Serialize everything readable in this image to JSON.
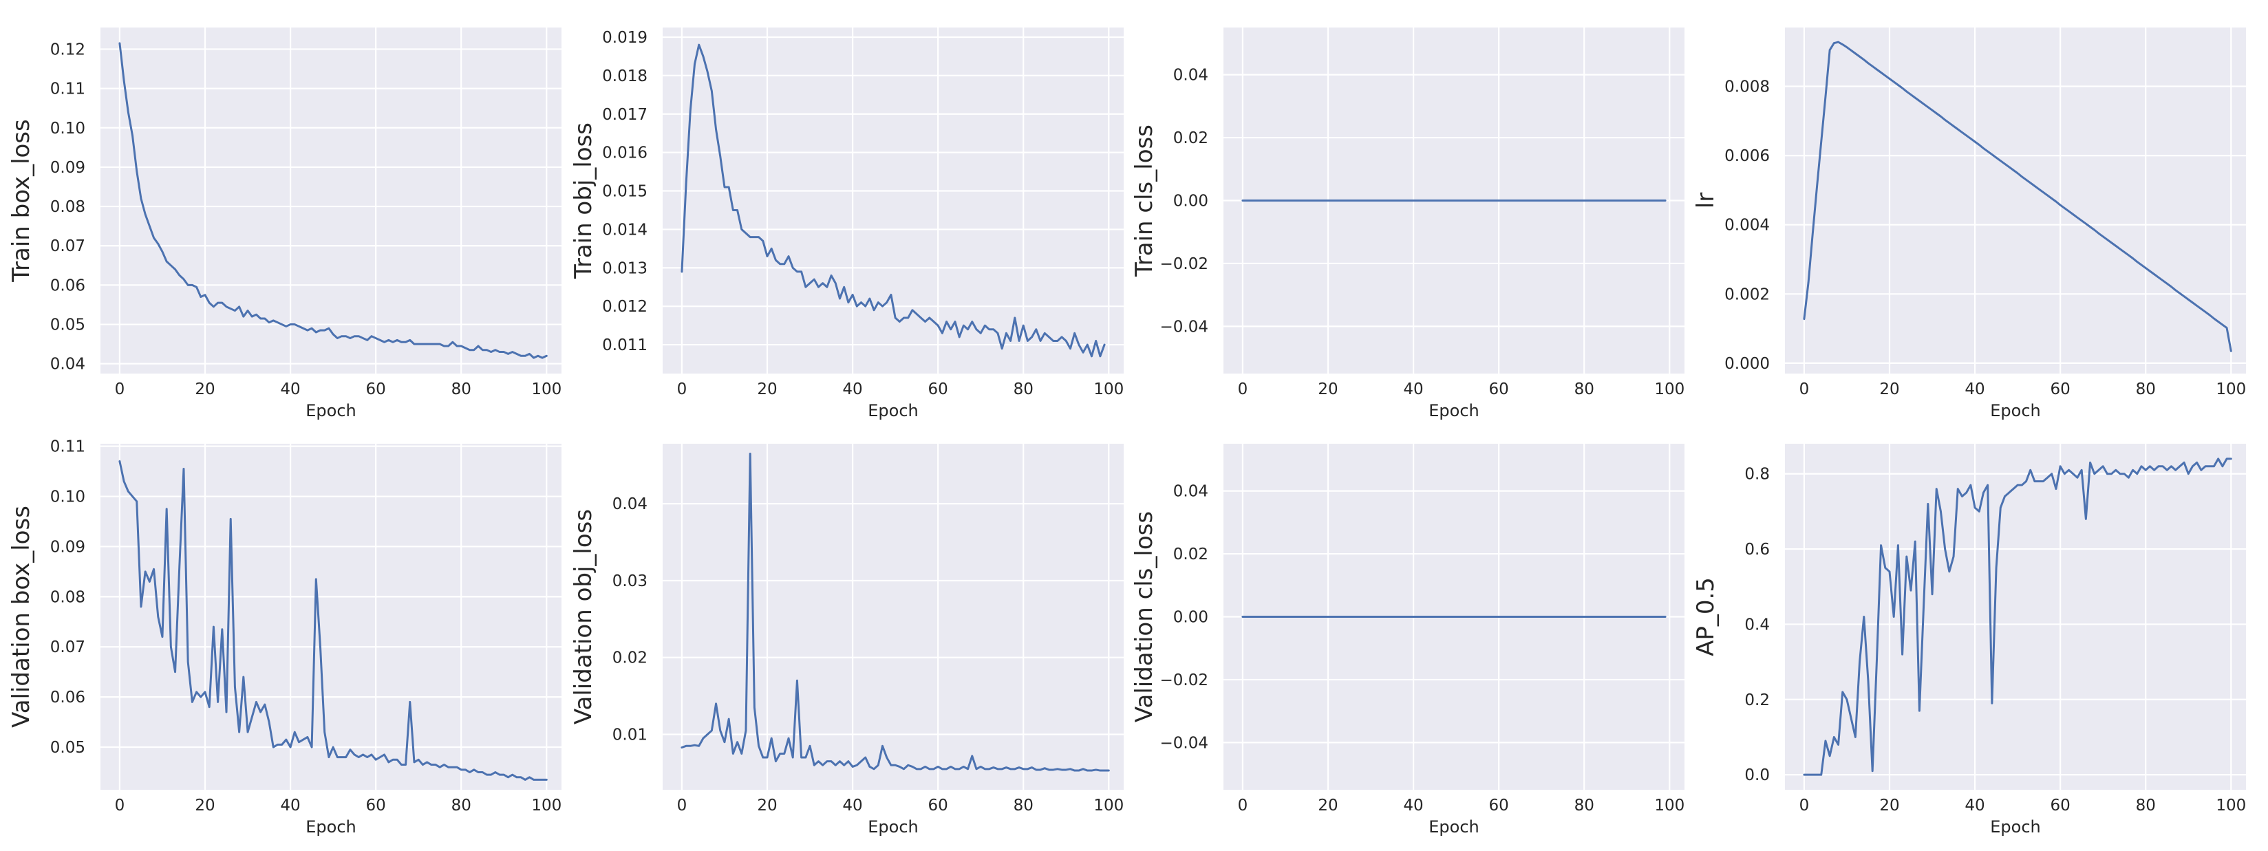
{
  "chart_data": [
    {
      "type": "line",
      "xlabel": "Epoch",
      "ylabel": "Train box_loss",
      "xlim": [
        -4.5,
        103.5
      ],
      "ylim": [
        0.0375,
        0.1255
      ],
      "xticks": [
        0,
        20,
        40,
        60,
        80,
        100
      ],
      "yticks": [
        0.04,
        0.05,
        0.06,
        0.07,
        0.08,
        0.09,
        0.1,
        0.11,
        0.12
      ],
      "ytick_labels": [
        "0.04",
        "0.05",
        "0.06",
        "0.07",
        "0.08",
        "0.09",
        "0.10",
        "0.11",
        "0.12"
      ],
      "grid": true,
      "series": [
        {
          "values": [
            0.1215,
            0.112,
            0.104,
            0.098,
            0.089,
            0.082,
            0.078,
            0.075,
            0.072,
            0.0705,
            0.0685,
            0.066,
            0.065,
            0.064,
            0.0625,
            0.0615,
            0.06,
            0.06,
            0.0595,
            0.057,
            0.0575,
            0.0555,
            0.0545,
            0.0555,
            0.0555,
            0.0545,
            0.054,
            0.0535,
            0.0545,
            0.052,
            0.0535,
            0.052,
            0.0525,
            0.0515,
            0.0515,
            0.0505,
            0.051,
            0.0505,
            0.05,
            0.0495,
            0.05,
            0.05,
            0.0495,
            0.049,
            0.0485,
            0.049,
            0.048,
            0.0485,
            0.0485,
            0.049,
            0.0475,
            0.0465,
            0.047,
            0.047,
            0.0465,
            0.047,
            0.047,
            0.0465,
            0.046,
            0.047,
            0.0465,
            0.046,
            0.0455,
            0.046,
            0.0455,
            0.046,
            0.0455,
            0.0455,
            0.046,
            0.045,
            0.045,
            0.045,
            0.045,
            0.045,
            0.045,
            0.045,
            0.0445,
            0.0445,
            0.0455,
            0.0445,
            0.0445,
            0.044,
            0.0435,
            0.0435,
            0.0445,
            0.0435,
            0.0435,
            0.043,
            0.0435,
            0.043,
            0.043,
            0.0425,
            0.043,
            0.0425,
            0.042,
            0.042,
            0.0425,
            0.0415,
            0.042,
            0.0415,
            0.042
          ]
        }
      ]
    },
    {
      "type": "line",
      "xlabel": "Epoch",
      "ylabel": "Train obj_loss",
      "xlim": [
        -4.5,
        103.5
      ],
      "ylim": [
        0.01025,
        0.01925
      ],
      "xticks": [
        0,
        20,
        40,
        60,
        80,
        100
      ],
      "yticks": [
        0.011,
        0.012,
        0.013,
        0.014,
        0.015,
        0.016,
        0.017,
        0.018,
        0.019
      ],
      "ytick_labels": [
        "0.011",
        "0.012",
        "0.013",
        "0.014",
        "0.015",
        "0.016",
        "0.017",
        "0.018",
        "0.019"
      ],
      "grid": true,
      "series": [
        {
          "values": [
            0.0129,
            0.0152,
            0.0171,
            0.0183,
            0.0188,
            0.0185,
            0.0181,
            0.0176,
            0.0166,
            0.0159,
            0.0151,
            0.0151,
            0.0145,
            0.0145,
            0.014,
            0.0139,
            0.0138,
            0.0138,
            0.0138,
            0.0137,
            0.0133,
            0.0135,
            0.0132,
            0.0131,
            0.0131,
            0.0133,
            0.013,
            0.0129,
            0.0129,
            0.0125,
            0.0126,
            0.0127,
            0.0125,
            0.0126,
            0.0125,
            0.0128,
            0.0126,
            0.0122,
            0.0125,
            0.0121,
            0.0123,
            0.012,
            0.0121,
            0.012,
            0.0122,
            0.0119,
            0.0121,
            0.012,
            0.0121,
            0.0123,
            0.0117,
            0.0116,
            0.0117,
            0.0117,
            0.0119,
            0.0118,
            0.0117,
            0.0116,
            0.0117,
            0.0116,
            0.0115,
            0.0113,
            0.0116,
            0.0114,
            0.0116,
            0.0112,
            0.0115,
            0.0114,
            0.0116,
            0.0114,
            0.0113,
            0.0115,
            0.0114,
            0.0114,
            0.0113,
            0.0109,
            0.0113,
            0.0111,
            0.0117,
            0.0111,
            0.0115,
            0.0111,
            0.0112,
            0.0114,
            0.0111,
            0.0113,
            0.0112,
            0.0111,
            0.0111,
            0.0112,
            0.0111,
            0.0109,
            0.0113,
            0.011,
            0.0108,
            0.011,
            0.0107,
            0.0111,
            0.0107,
            0.011
          ]
        }
      ]
    },
    {
      "type": "line",
      "xlabel": "Epoch",
      "ylabel": "Train cls_loss",
      "xlim": [
        -4.5,
        103.5
      ],
      "ylim": [
        -0.055,
        0.055
      ],
      "xticks": [
        0,
        20,
        40,
        60,
        80,
        100
      ],
      "yticks": [
        -0.04,
        -0.02,
        0.0,
        0.02,
        0.04
      ],
      "ytick_labels": [
        "−0.04",
        "−0.02",
        "0.00",
        "0.02",
        "0.04"
      ],
      "grid": true,
      "series": [
        {
          "values": [
            0,
            0,
            0,
            0,
            0,
            0,
            0,
            0,
            0,
            0,
            0,
            0,
            0,
            0,
            0,
            0,
            0,
            0,
            0,
            0,
            0,
            0,
            0,
            0,
            0,
            0,
            0,
            0,
            0,
            0,
            0,
            0,
            0,
            0,
            0,
            0,
            0,
            0,
            0,
            0,
            0,
            0,
            0,
            0,
            0,
            0,
            0,
            0,
            0,
            0,
            0,
            0,
            0,
            0,
            0,
            0,
            0,
            0,
            0,
            0,
            0,
            0,
            0,
            0,
            0,
            0,
            0,
            0,
            0,
            0,
            0,
            0,
            0,
            0,
            0,
            0,
            0,
            0,
            0,
            0,
            0,
            0,
            0,
            0,
            0,
            0,
            0,
            0,
            0,
            0,
            0,
            0,
            0,
            0,
            0,
            0,
            0,
            0,
            0,
            0
          ]
        }
      ]
    },
    {
      "type": "line",
      "xlabel": "Epoch",
      "ylabel": "lr",
      "xlim": [
        -4.5,
        103.5
      ],
      "ylim": [
        -0.0003,
        0.0097
      ],
      "xticks": [
        0,
        20,
        40,
        60,
        80,
        100
      ],
      "yticks": [
        0.0,
        0.002,
        0.004,
        0.006,
        0.008
      ],
      "ytick_labels": [
        "0.000",
        "0.002",
        "0.004",
        "0.006",
        "0.008"
      ],
      "grid": true,
      "series": [
        {
          "values": [
            0.00128,
            0.00234,
            0.00375,
            0.0051,
            0.0064,
            0.0077,
            0.00905,
            0.00925,
            0.00928,
            0.00921,
            0.00913,
            0.00904,
            0.00895,
            0.00886,
            0.00877,
            0.00867,
            0.00858,
            0.00849,
            0.0084,
            0.00831,
            0.00822,
            0.00813,
            0.00804,
            0.00795,
            0.00785,
            0.00776,
            0.00767,
            0.00758,
            0.00749,
            0.0074,
            0.00731,
            0.00722,
            0.00713,
            0.00703,
            0.00694,
            0.00685,
            0.00676,
            0.00667,
            0.00658,
            0.00649,
            0.0064,
            0.00631,
            0.00621,
            0.00612,
            0.00603,
            0.00594,
            0.00585,
            0.00576,
            0.00567,
            0.00558,
            0.00549,
            0.00539,
            0.0053,
            0.00521,
            0.00512,
            0.00503,
            0.00494,
            0.00485,
            0.00476,
            0.00467,
            0.00457,
            0.00448,
            0.00439,
            0.0043,
            0.00421,
            0.00412,
            0.00403,
            0.00394,
            0.00385,
            0.00375,
            0.00366,
            0.00357,
            0.00348,
            0.00339,
            0.0033,
            0.00321,
            0.00312,
            0.00303,
            0.00293,
            0.00284,
            0.00275,
            0.00266,
            0.00257,
            0.00248,
            0.00239,
            0.0023,
            0.00221,
            0.00211,
            0.00202,
            0.00193,
            0.00184,
            0.00175,
            0.00166,
            0.00157,
            0.00148,
            0.00139,
            0.00129,
            0.0012,
            0.00111,
            0.00102,
            0.00035
          ]
        }
      ]
    },
    {
      "type": "line",
      "xlabel": "Epoch",
      "ylabel": "Validation box_loss",
      "xlim": [
        -4.5,
        103.5
      ],
      "ylim": [
        0.0415,
        0.1105
      ],
      "xticks": [
        0,
        20,
        40,
        60,
        80,
        100
      ],
      "yticks": [
        0.05,
        0.06,
        0.07,
        0.08,
        0.09,
        0.1,
        0.11
      ],
      "ytick_labels": [
        "0.05",
        "0.06",
        "0.07",
        "0.08",
        "0.09",
        "0.10",
        "0.11"
      ],
      "grid": true,
      "series": [
        {
          "values": [
            0.107,
            0.103,
            0.101,
            0.1,
            0.099,
            0.078,
            0.085,
            0.083,
            0.0855,
            0.076,
            0.072,
            0.0975,
            0.07,
            0.065,
            0.086,
            0.1055,
            0.067,
            0.059,
            0.061,
            0.06,
            0.061,
            0.058,
            0.074,
            0.059,
            0.0735,
            0.057,
            0.0955,
            0.062,
            0.053,
            0.064,
            0.053,
            0.056,
            0.059,
            0.057,
            0.0585,
            0.055,
            0.05,
            0.0505,
            0.0505,
            0.0515,
            0.05,
            0.053,
            0.051,
            0.0515,
            0.052,
            0.05,
            0.0835,
            0.07,
            0.053,
            0.048,
            0.05,
            0.048,
            0.048,
            0.048,
            0.0495,
            0.0485,
            0.048,
            0.0485,
            0.048,
            0.0485,
            0.0475,
            0.048,
            0.0485,
            0.047,
            0.0475,
            0.0475,
            0.0465,
            0.0465,
            0.059,
            0.047,
            0.0475,
            0.0465,
            0.047,
            0.0465,
            0.0465,
            0.046,
            0.0465,
            0.046,
            0.046,
            0.046,
            0.0455,
            0.0455,
            0.045,
            0.0455,
            0.045,
            0.045,
            0.0445,
            0.0445,
            0.045,
            0.0445,
            0.0445,
            0.044,
            0.0445,
            0.044,
            0.044,
            0.0435,
            0.044,
            0.0435,
            0.0435,
            0.0435,
            0.0435
          ]
        }
      ]
    },
    {
      "type": "line",
      "xlabel": "Epoch",
      "ylabel": "Validation obj_loss",
      "xlim": [
        -4.5,
        103.5
      ],
      "ylim": [
        0.0028,
        0.0478
      ],
      "xticks": [
        0,
        20,
        40,
        60,
        80,
        100
      ],
      "yticks": [
        0.01,
        0.02,
        0.03,
        0.04
      ],
      "ytick_labels": [
        "0.01",
        "0.02",
        "0.03",
        "0.04"
      ],
      "grid": true,
      "series": [
        {
          "values": [
            0.0083,
            0.0085,
            0.0085,
            0.0086,
            0.0085,
            0.0095,
            0.01,
            0.0105,
            0.014,
            0.0105,
            0.009,
            0.012,
            0.0075,
            0.009,
            0.0075,
            0.0105,
            0.0465,
            0.0135,
            0.0085,
            0.007,
            0.007,
            0.0095,
            0.0065,
            0.0075,
            0.0075,
            0.0095,
            0.007,
            0.017,
            0.007,
            0.007,
            0.0085,
            0.006,
            0.0065,
            0.006,
            0.0065,
            0.0065,
            0.006,
            0.0065,
            0.006,
            0.0065,
            0.0058,
            0.006,
            0.0065,
            0.007,
            0.0058,
            0.0055,
            0.006,
            0.0085,
            0.007,
            0.006,
            0.006,
            0.0058,
            0.0055,
            0.006,
            0.0058,
            0.0055,
            0.0055,
            0.0058,
            0.0055,
            0.0055,
            0.0058,
            0.0055,
            0.0055,
            0.0058,
            0.0055,
            0.0055,
            0.0058,
            0.0055,
            0.0072,
            0.0055,
            0.0058,
            0.0055,
            0.0055,
            0.0057,
            0.0055,
            0.0055,
            0.0057,
            0.0055,
            0.0055,
            0.0057,
            0.0055,
            0.0055,
            0.0057,
            0.0054,
            0.0054,
            0.0056,
            0.0054,
            0.0054,
            0.0055,
            0.0054,
            0.0054,
            0.0055,
            0.0053,
            0.0053,
            0.0055,
            0.0053,
            0.0053,
            0.0054,
            0.0053,
            0.0053,
            0.0053
          ]
        }
      ]
    },
    {
      "type": "line",
      "xlabel": "Epoch",
      "ylabel": "Validation cls_loss",
      "xlim": [
        -4.5,
        103.5
      ],
      "ylim": [
        -0.055,
        0.055
      ],
      "xticks": [
        0,
        20,
        40,
        60,
        80,
        100
      ],
      "yticks": [
        -0.04,
        -0.02,
        0.0,
        0.02,
        0.04
      ],
      "ytick_labels": [
        "−0.04",
        "−0.02",
        "0.00",
        "0.02",
        "0.04"
      ],
      "grid": true,
      "series": [
        {
          "values": [
            0,
            0,
            0,
            0,
            0,
            0,
            0,
            0,
            0,
            0,
            0,
            0,
            0,
            0,
            0,
            0,
            0,
            0,
            0,
            0,
            0,
            0,
            0,
            0,
            0,
            0,
            0,
            0,
            0,
            0,
            0,
            0,
            0,
            0,
            0,
            0,
            0,
            0,
            0,
            0,
            0,
            0,
            0,
            0,
            0,
            0,
            0,
            0,
            0,
            0,
            0,
            0,
            0,
            0,
            0,
            0,
            0,
            0,
            0,
            0,
            0,
            0,
            0,
            0,
            0,
            0,
            0,
            0,
            0,
            0,
            0,
            0,
            0,
            0,
            0,
            0,
            0,
            0,
            0,
            0,
            0,
            0,
            0,
            0,
            0,
            0,
            0,
            0,
            0,
            0,
            0,
            0,
            0,
            0,
            0,
            0,
            0,
            0,
            0,
            0
          ]
        }
      ]
    },
    {
      "type": "line",
      "xlabel": "Epoch",
      "ylabel": "AP_0.5",
      "xlim": [
        -4.5,
        103.5
      ],
      "ylim": [
        -0.04,
        0.88
      ],
      "xticks": [
        0,
        20,
        40,
        60,
        80,
        100
      ],
      "yticks": [
        0.0,
        0.2,
        0.4,
        0.6,
        0.8
      ],
      "ytick_labels": [
        "0.0",
        "0.2",
        "0.4",
        "0.6",
        "0.8"
      ],
      "grid": true,
      "series": [
        {
          "values": [
            0.0,
            0.0,
            0.0,
            0.0,
            0.0,
            0.09,
            0.05,
            0.1,
            0.08,
            0.22,
            0.2,
            0.15,
            0.1,
            0.3,
            0.42,
            0.25,
            0.01,
            0.3,
            0.61,
            0.55,
            0.54,
            0.42,
            0.61,
            0.32,
            0.58,
            0.49,
            0.62,
            0.17,
            0.45,
            0.72,
            0.48,
            0.76,
            0.7,
            0.6,
            0.54,
            0.58,
            0.76,
            0.74,
            0.75,
            0.77,
            0.71,
            0.7,
            0.75,
            0.77,
            0.19,
            0.55,
            0.71,
            0.74,
            0.75,
            0.76,
            0.77,
            0.77,
            0.78,
            0.81,
            0.78,
            0.78,
            0.78,
            0.79,
            0.8,
            0.76,
            0.82,
            0.8,
            0.81,
            0.8,
            0.79,
            0.81,
            0.68,
            0.83,
            0.8,
            0.81,
            0.82,
            0.8,
            0.8,
            0.81,
            0.8,
            0.8,
            0.79,
            0.81,
            0.8,
            0.82,
            0.81,
            0.82,
            0.81,
            0.82,
            0.82,
            0.81,
            0.82,
            0.81,
            0.82,
            0.83,
            0.8,
            0.82,
            0.83,
            0.81,
            0.82,
            0.82,
            0.82,
            0.84,
            0.82,
            0.84,
            0.84
          ]
        }
      ]
    }
  ]
}
